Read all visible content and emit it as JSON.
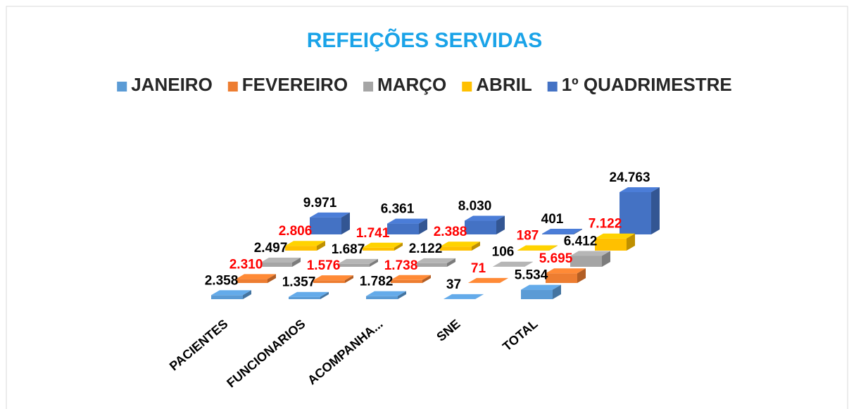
{
  "chart_data": {
    "type": "bar3d",
    "title": "REFEIÇÕES SERVIDAS",
    "categories": [
      "PACIENTES",
      "FUNCIONARIOS",
      "ACOMPANHA...",
      "SNE",
      "TOTAL"
    ],
    "series": [
      {
        "name": "JANEIRO",
        "color": "#5b9bd5",
        "label_color": "#000000",
        "values": [
          2358,
          1357,
          1782,
          37,
          5534
        ],
        "value_labels": [
          "2.358",
          "1.357",
          "1.782",
          "37",
          "5.534"
        ]
      },
      {
        "name": "FEVEREIRO",
        "color": "#ed7d31",
        "label_color": "#ff0000",
        "values": [
          2310,
          1576,
          1738,
          71,
          5695
        ],
        "value_labels": [
          "2.310",
          "1.576",
          "1.738",
          "71",
          "5.695"
        ]
      },
      {
        "name": "MARÇO",
        "color": "#a5a5a5",
        "label_color": "#000000",
        "values": [
          2497,
          1687,
          2122,
          106,
          6412
        ],
        "value_labels": [
          "2.497",
          "1.687",
          "2.122",
          "106",
          "6.412"
        ]
      },
      {
        "name": "ABRIL",
        "color": "#ffc000",
        "label_color": "#ff0000",
        "values": [
          2806,
          1741,
          2388,
          187,
          7122
        ],
        "value_labels": [
          "2.806",
          "1.741",
          "2.388",
          "187",
          "7.122"
        ]
      },
      {
        "name": "1º QUADRIMESTRE",
        "color": "#4472c4",
        "label_color": "#000000",
        "values": [
          9971,
          6361,
          8030,
          401,
          24763
        ],
        "value_labels": [
          "9.971",
          "6.361",
          "8.030",
          "401",
          "24.763"
        ]
      }
    ]
  }
}
